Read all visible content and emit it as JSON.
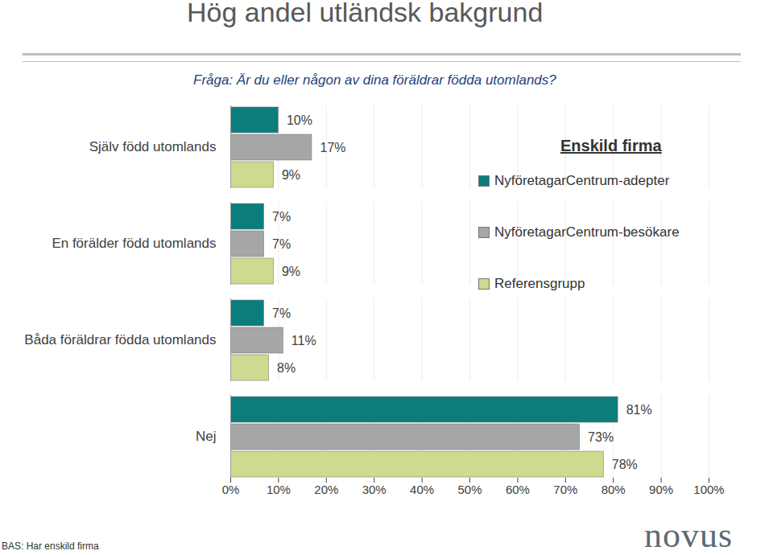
{
  "chart_data": {
    "type": "bar",
    "orientation": "horizontal",
    "title": "Hög andel utländsk bakgrund",
    "subtitle": "Fråga: Är du eller någon av dina föräldrar födda utomlands?",
    "legend_title": "Enskild firma",
    "caption": "BAS: Har enskild firma",
    "logo": "novus",
    "categories": [
      "Själv född utomlands",
      "En förälder född utomlands",
      "Båda föräldrar födda utomlands",
      "Nej"
    ],
    "series": [
      {
        "name": "NyföretagarCentrum-adepter",
        "color": "#0b7d7d",
        "values": [
          10,
          7,
          7,
          81
        ],
        "value_labels": [
          "10%",
          "7%",
          "7%",
          "81%"
        ]
      },
      {
        "name": "NyföretagarCentrum-besökare",
        "color": "#a6a6a6",
        "values": [
          17,
          7,
          11,
          73
        ],
        "value_labels": [
          "17%",
          "7%",
          "11%",
          "73%"
        ]
      },
      {
        "name": "Referensgrupp",
        "color": "#cfd98f",
        "values": [
          9,
          9,
          8,
          78
        ],
        "value_labels": [
          "9%",
          "9%",
          "8%",
          "78%"
        ]
      }
    ],
    "xlim": [
      0,
      100
    ],
    "xticks": [
      {
        "value": 0,
        "label": "0%"
      },
      {
        "value": 10,
        "label": "10%"
      },
      {
        "value": 20,
        "label": "20%"
      },
      {
        "value": 30,
        "label": "30%"
      },
      {
        "value": 40,
        "label": "40%"
      },
      {
        "value": 50,
        "label": "50%"
      },
      {
        "value": 60,
        "label": "60%"
      },
      {
        "value": 70,
        "label": "70%"
      },
      {
        "value": 80,
        "label": "80%"
      },
      {
        "value": 90,
        "label": "90%"
      },
      {
        "value": 100,
        "label": "100%"
      }
    ],
    "grid": true,
    "data_labels": true,
    "legend": "top-right"
  }
}
